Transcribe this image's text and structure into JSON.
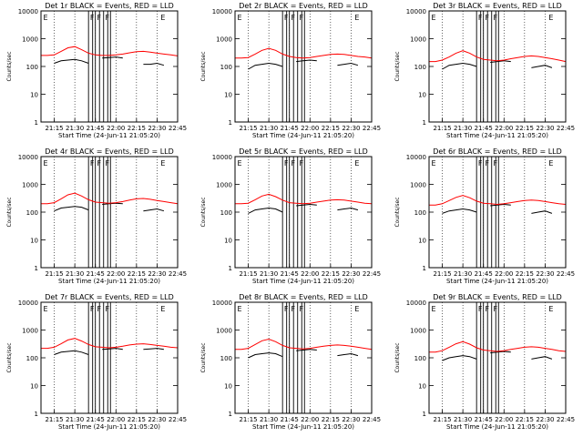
{
  "figure": {
    "xlabel": "Start Time (24-Jun-11 21:05:20)",
    "ylabel": "Counts/sec",
    "colors": {
      "events": "#000000",
      "lld": "#ff0000",
      "axes": "#000000"
    }
  },
  "chart_data": [
    {
      "type": "line",
      "title": "Det 1r BLACK = Events, RED = LLD",
      "xlabel": "Start Time (24-Jun-11 21:05:20)",
      "ylabel": "Counts/sec",
      "yscale": "log",
      "ylim": [
        1,
        10000
      ],
      "xlim": [
        "21:05:20",
        "22:45:00"
      ],
      "x_ticks": [
        "21:15",
        "21:30",
        "21:45",
        "22:00",
        "22:15",
        "22:30",
        "22:45"
      ],
      "y_ticks": [
        "1",
        "10",
        "100",
        "1000",
        "10000"
      ],
      "grid": "vertical dotted",
      "x": [
        "21:05",
        "21:10",
        "21:15",
        "21:20",
        "21:25",
        "21:30",
        "21:35",
        "21:40",
        "21:45",
        "21:50",
        "21:55",
        "22:00",
        "22:05",
        "22:10",
        "22:15",
        "22:20",
        "22:25",
        "22:30",
        "22:35",
        "22:40",
        "22:45"
      ],
      "series": [
        {
          "name": "Events",
          "color": "black",
          "values": [
            null,
            null,
            130,
            160,
            170,
            180,
            160,
            130,
            null,
            200,
            210,
            220,
            200,
            null,
            null,
            120,
            120,
            130,
            110,
            null,
            null
          ]
        },
        {
          "name": "LLD",
          "color": "red",
          "values": [
            250,
            250,
            260,
            350,
            470,
            520,
            400,
            300,
            260,
            250,
            250,
            260,
            280,
            310,
            340,
            350,
            330,
            300,
            280,
            260,
            240
          ]
        }
      ],
      "annotations": [
        "E",
        "F",
        "F",
        "F",
        "E"
      ]
    },
    {
      "type": "line",
      "title": "Det 2r BLACK = Events, RED = LLD",
      "xlabel": "Start Time (24-Jun-11 21:05:20)",
      "ylabel": "Counts/sec",
      "yscale": "log",
      "ylim": [
        1,
        10000
      ],
      "xlim": [
        "21:05:20",
        "22:45:00"
      ],
      "x_ticks": [
        "21:15",
        "21:30",
        "21:45",
        "22:00",
        "22:15",
        "22:30",
        "22:45"
      ],
      "y_ticks": [
        "1",
        "10",
        "100",
        "1000",
        "10000"
      ],
      "grid": "vertical dotted",
      "x": [
        "21:05",
        "21:10",
        "21:15",
        "21:20",
        "21:25",
        "21:30",
        "21:35",
        "21:40",
        "21:45",
        "21:50",
        "21:55",
        "22:00",
        "22:05",
        "22:10",
        "22:15",
        "22:20",
        "22:25",
        "22:30",
        "22:35",
        "22:40",
        "22:45"
      ],
      "series": [
        {
          "name": "Events",
          "color": "black",
          "values": [
            null,
            null,
            80,
            110,
            120,
            130,
            120,
            100,
            null,
            150,
            160,
            170,
            160,
            null,
            null,
            110,
            120,
            130,
            110,
            null,
            null
          ]
        },
        {
          "name": "LLD",
          "color": "red",
          "values": [
            200,
            200,
            210,
            280,
            380,
            450,
            380,
            280,
            230,
            210,
            200,
            210,
            230,
            250,
            270,
            280,
            270,
            250,
            230,
            220,
            200
          ]
        }
      ],
      "annotations": [
        "E",
        "F",
        "F",
        "F",
        "E"
      ]
    },
    {
      "type": "line",
      "title": "Det 3r BLACK = Events, RED = LLD",
      "xlabel": "Start Time (24-Jun-11 21:05:20)",
      "ylabel": "Counts/sec",
      "yscale": "log",
      "ylim": [
        1,
        10000
      ],
      "xlim": [
        "21:05:20",
        "22:45:00"
      ],
      "x_ticks": [
        "21:15",
        "21:30",
        "21:45",
        "22:00",
        "22:15",
        "22:30",
        "22:45"
      ],
      "y_ticks": [
        "1",
        "10",
        "100",
        "1000",
        "10000"
      ],
      "grid": "vertical dotted",
      "x": [
        "21:05",
        "21:10",
        "21:15",
        "21:20",
        "21:25",
        "21:30",
        "21:35",
        "21:40",
        "21:45",
        "21:50",
        "21:55",
        "22:00",
        "22:05",
        "22:10",
        "22:15",
        "22:20",
        "22:25",
        "22:30",
        "22:35",
        "22:40",
        "22:45"
      ],
      "series": [
        {
          "name": "Events",
          "color": "black",
          "values": [
            null,
            null,
            80,
            110,
            120,
            130,
            120,
            100,
            null,
            140,
            150,
            160,
            150,
            null,
            null,
            90,
            100,
            110,
            90,
            null,
            null
          ]
        },
        {
          "name": "LLD",
          "color": "red",
          "values": [
            150,
            150,
            170,
            220,
            300,
            370,
            300,
            220,
            180,
            170,
            160,
            170,
            190,
            210,
            230,
            240,
            230,
            210,
            190,
            170,
            150
          ]
        }
      ],
      "annotations": [
        "E",
        "F",
        "F",
        "F",
        "E"
      ]
    },
    {
      "type": "line",
      "title": "Det 4r BLACK = Events, RED = LLD",
      "xlabel": "Start Time (24-Jun-11 21:05:20)",
      "ylabel": "Counts/sec",
      "yscale": "log",
      "ylim": [
        1,
        10000
      ],
      "xlim": [
        "21:05:20",
        "22:45:00"
      ],
      "x_ticks": [
        "21:15",
        "21:30",
        "21:45",
        "22:00",
        "22:15",
        "22:30",
        "22:45"
      ],
      "y_ticks": [
        "1",
        "10",
        "100",
        "1000",
        "10000"
      ],
      "grid": "vertical dotted",
      "x": [
        "21:05",
        "21:10",
        "21:15",
        "21:20",
        "21:25",
        "21:30",
        "21:35",
        "21:40",
        "21:45",
        "21:50",
        "21:55",
        "22:00",
        "22:05",
        "22:10",
        "22:15",
        "22:20",
        "22:25",
        "22:30",
        "22:35",
        "22:40",
        "22:45"
      ],
      "series": [
        {
          "name": "Events",
          "color": "black",
          "values": [
            null,
            null,
            110,
            140,
            150,
            160,
            150,
            120,
            null,
            190,
            200,
            210,
            200,
            null,
            null,
            110,
            120,
            130,
            110,
            null,
            null
          ]
        },
        {
          "name": "LLD",
          "color": "red",
          "values": [
            200,
            200,
            220,
            300,
            420,
            480,
            380,
            280,
            230,
            220,
            210,
            220,
            240,
            270,
            300,
            310,
            290,
            260,
            240,
            220,
            200
          ]
        }
      ],
      "annotations": [
        "E",
        "F",
        "F",
        "F",
        "E"
      ]
    },
    {
      "type": "line",
      "title": "Det 5r BLACK = Events, RED = LLD",
      "xlabel": "Start Time (24-Jun-11 21:05:20)",
      "ylabel": "Counts/sec",
      "yscale": "log",
      "ylim": [
        1,
        10000
      ],
      "xlim": [
        "21:05:20",
        "22:45:00"
      ],
      "x_ticks": [
        "21:15",
        "21:30",
        "21:45",
        "22:00",
        "22:15",
        "22:30",
        "22:45"
      ],
      "y_ticks": [
        "1",
        "10",
        "100",
        "1000",
        "10000"
      ],
      "grid": "vertical dotted",
      "x": [
        "21:05",
        "21:10",
        "21:15",
        "21:20",
        "21:25",
        "21:30",
        "21:35",
        "21:40",
        "21:45",
        "21:50",
        "21:55",
        "22:00",
        "22:05",
        "22:10",
        "22:15",
        "22:20",
        "22:25",
        "22:30",
        "22:35",
        "22:40",
        "22:45"
      ],
      "series": [
        {
          "name": "Events",
          "color": "black",
          "values": [
            null,
            null,
            90,
            120,
            130,
            140,
            130,
            100,
            null,
            170,
            180,
            190,
            180,
            null,
            null,
            120,
            130,
            140,
            120,
            null,
            null
          ]
        },
        {
          "name": "LLD",
          "color": "red",
          "values": [
            200,
            200,
            210,
            280,
            380,
            440,
            360,
            270,
            220,
            210,
            200,
            210,
            230,
            250,
            270,
            280,
            270,
            250,
            230,
            210,
            200
          ]
        }
      ],
      "annotations": [
        "E",
        "F",
        "F",
        "F",
        "E"
      ]
    },
    {
      "type": "line",
      "title": "Det 6r BLACK = Events, RED = LLD",
      "xlabel": "Start Time (24-Jun-11 21:05:20)",
      "ylabel": "Counts/sec",
      "yscale": "log",
      "ylim": [
        1,
        10000
      ],
      "xlim": [
        "21:05:20",
        "22:45:00"
      ],
      "x_ticks": [
        "21:15",
        "21:30",
        "21:45",
        "22:00",
        "22:15",
        "22:30",
        "22:45"
      ],
      "y_ticks": [
        "1",
        "10",
        "100",
        "1000",
        "10000"
      ],
      "grid": "vertical dotted",
      "x": [
        "21:05",
        "21:10",
        "21:15",
        "21:20",
        "21:25",
        "21:30",
        "21:35",
        "21:40",
        "21:45",
        "21:50",
        "21:55",
        "22:00",
        "22:05",
        "22:10",
        "22:15",
        "22:20",
        "22:25",
        "22:30",
        "22:35",
        "22:40",
        "22:45"
      ],
      "series": [
        {
          "name": "Events",
          "color": "black",
          "values": [
            null,
            null,
            90,
            110,
            120,
            130,
            120,
            100,
            null,
            170,
            180,
            190,
            180,
            null,
            null,
            90,
            100,
            110,
            90,
            null,
            null
          ]
        },
        {
          "name": "LLD",
          "color": "red",
          "values": [
            180,
            180,
            200,
            260,
            340,
            400,
            330,
            250,
            210,
            200,
            190,
            200,
            220,
            240,
            260,
            270,
            260,
            240,
            220,
            200,
            190
          ]
        }
      ],
      "annotations": [
        "E",
        "F",
        "F",
        "F",
        "E"
      ]
    },
    {
      "type": "line",
      "title": "Det 7r BLACK = Events, RED = LLD",
      "xlabel": "Start Time (24-Jun-11 21:05:20)",
      "ylabel": "Counts/sec",
      "yscale": "log",
      "ylim": [
        1,
        10000
      ],
      "xlim": [
        "21:05:20",
        "22:45:00"
      ],
      "x_ticks": [
        "21:15",
        "21:30",
        "21:45",
        "22:00",
        "22:15",
        "22:30",
        "22:45"
      ],
      "y_ticks": [
        "1",
        "10",
        "100",
        "1000",
        "10000"
      ],
      "grid": "vertical dotted",
      "x": [
        "21:05",
        "21:10",
        "21:15",
        "21:20",
        "21:25",
        "21:30",
        "21:35",
        "21:40",
        "21:45",
        "21:50",
        "21:55",
        "22:00",
        "22:05",
        "22:10",
        "22:15",
        "22:20",
        "22:25",
        "22:30",
        "22:35",
        "22:40",
        "22:45"
      ],
      "series": [
        {
          "name": "Events",
          "color": "black",
          "values": [
            null,
            null,
            130,
            160,
            170,
            180,
            160,
            130,
            null,
            200,
            210,
            220,
            200,
            null,
            null,
            200,
            210,
            220,
            200,
            null,
            null
          ]
        },
        {
          "name": "LLD",
          "color": "red",
          "values": [
            220,
            220,
            240,
            320,
            440,
            500,
            400,
            300,
            250,
            240,
            230,
            240,
            260,
            290,
            310,
            320,
            300,
            280,
            260,
            240,
            230
          ]
        }
      ],
      "annotations": [
        "E",
        "F",
        "F",
        "F",
        "E"
      ]
    },
    {
      "type": "line",
      "title": "Det 8r BLACK = Events, RED = LLD",
      "xlabel": "Start Time (24-Jun-11 21:05:20)",
      "ylabel": "Counts/sec",
      "yscale": "log",
      "ylim": [
        1,
        10000
      ],
      "xlim": [
        "21:05:20",
        "22:45:00"
      ],
      "x_ticks": [
        "21:15",
        "21:30",
        "21:45",
        "22:00",
        "22:15",
        "22:30",
        "22:45"
      ],
      "y_ticks": [
        "1",
        "10",
        "100",
        "1000",
        "10000"
      ],
      "grid": "vertical dotted",
      "x": [
        "21:05",
        "21:10",
        "21:15",
        "21:20",
        "21:25",
        "21:30",
        "21:35",
        "21:40",
        "21:45",
        "21:50",
        "21:55",
        "22:00",
        "22:05",
        "22:10",
        "22:15",
        "22:20",
        "22:25",
        "22:30",
        "22:35",
        "22:40",
        "22:45"
      ],
      "series": [
        {
          "name": "Events",
          "color": "black",
          "values": [
            null,
            null,
            100,
            130,
            140,
            150,
            140,
            110,
            null,
            180,
            190,
            200,
            190,
            null,
            null,
            120,
            130,
            140,
            120,
            null,
            null
          ]
        },
        {
          "name": "LLD",
          "color": "red",
          "values": [
            200,
            200,
            220,
            300,
            410,
            470,
            380,
            280,
            230,
            220,
            210,
            220,
            240,
            260,
            280,
            290,
            280,
            260,
            240,
            220,
            200
          ]
        }
      ],
      "annotations": [
        "E",
        "F",
        "F",
        "F",
        "E"
      ]
    },
    {
      "type": "line",
      "title": "Det 9r BLACK = Events, RED = LLD",
      "xlabel": "Start Time (24-Jun-11 21:05:20)",
      "ylabel": "Counts/sec",
      "yscale": "log",
      "ylim": [
        1,
        10000
      ],
      "xlim": [
        "21:05:20",
        "22:45:00"
      ],
      "x_ticks": [
        "21:15",
        "21:30",
        "21:45",
        "22:00",
        "22:15",
        "22:30",
        "22:45"
      ],
      "y_ticks": [
        "1",
        "10",
        "100",
        "1000",
        "10000"
      ],
      "grid": "vertical dotted",
      "x": [
        "21:05",
        "21:10",
        "21:15",
        "21:20",
        "21:25",
        "21:30",
        "21:35",
        "21:40",
        "21:45",
        "21:50",
        "21:55",
        "22:00",
        "22:05",
        "22:10",
        "22:15",
        "22:20",
        "22:25",
        "22:30",
        "22:35",
        "22:40",
        "22:45"
      ],
      "series": [
        {
          "name": "Events",
          "color": "black",
          "values": [
            null,
            null,
            80,
            100,
            110,
            120,
            110,
            90,
            null,
            150,
            160,
            170,
            160,
            null,
            null,
            90,
            100,
            110,
            90,
            null,
            null
          ]
        },
        {
          "name": "LLD",
          "color": "red",
          "values": [
            160,
            160,
            180,
            240,
            320,
            380,
            310,
            230,
            190,
            180,
            170,
            180,
            200,
            220,
            240,
            250,
            240,
            220,
            200,
            180,
            170
          ]
        }
      ],
      "annotations": [
        "E",
        "F",
        "F",
        "F",
        "E"
      ]
    }
  ]
}
